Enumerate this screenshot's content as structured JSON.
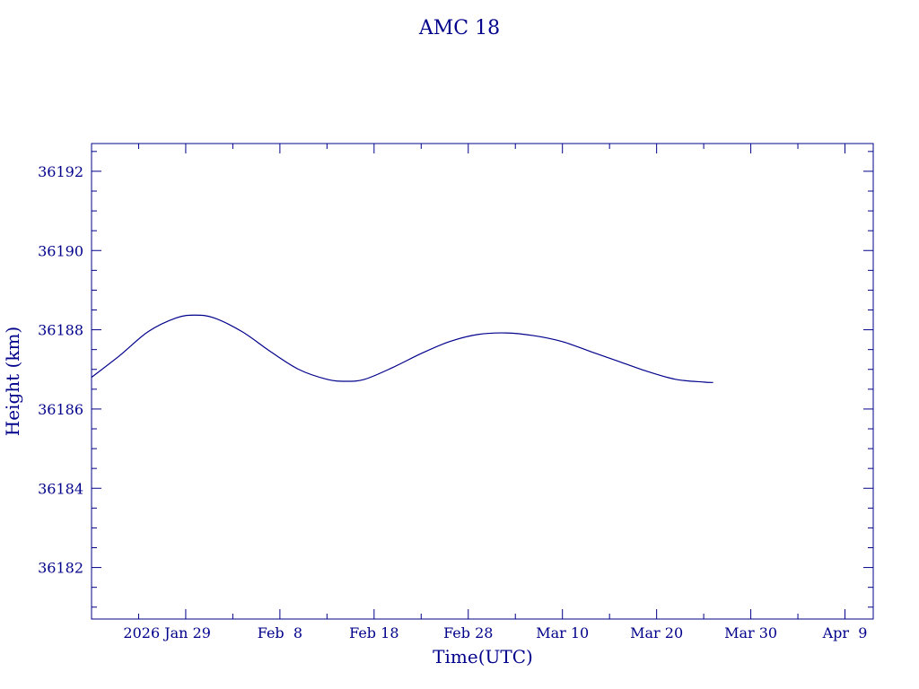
{
  "colors": {
    "axis": "#00008b",
    "line": "#00008b",
    "background": "#ffffff"
  },
  "chart_data": {
    "type": "line",
    "title": "AMC 18",
    "xlabel": "Time(UTC)",
    "ylabel": "Height (km)",
    "xlim": [
      "2026-01-19",
      "2026-04-12"
    ],
    "ylim": [
      36180.7,
      36192.7
    ],
    "grid": false,
    "x_ticks": [
      {
        "date": "2026-01-29",
        "label": "2026 Jan 29"
      },
      {
        "date": "2026-02-08",
        "label": "Feb  8"
      },
      {
        "date": "2026-02-18",
        "label": "Feb 18"
      },
      {
        "date": "2026-02-28",
        "label": "Feb 28"
      },
      {
        "date": "2026-03-10",
        "label": "Mar 10"
      },
      {
        "date": "2026-03-20",
        "label": "Mar 20"
      },
      {
        "date": "2026-03-30",
        "label": "Mar 30"
      },
      {
        "date": "2026-04-09",
        "label": "Apr  9"
      }
    ],
    "y_ticks": [
      36182,
      36184,
      36186,
      36188,
      36190,
      36192
    ],
    "y_tick_labels": [
      "36182",
      "36184",
      "36186",
      "36188",
      "36190",
      "36192"
    ],
    "series": [
      {
        "x": [
          "2026-01-19",
          "2026-01-22",
          "2026-01-25",
          "2026-01-28",
          "2026-01-30",
          "2026-02-01",
          "2026-02-04",
          "2026-02-07",
          "2026-02-10",
          "2026-02-13",
          "2026-02-15",
          "2026-02-17",
          "2026-02-20",
          "2026-02-23",
          "2026-02-26",
          "2026-03-01",
          "2026-03-04",
          "2026-03-07",
          "2026-03-10",
          "2026-03-13",
          "2026-03-16",
          "2026-03-19",
          "2026-03-22",
          "2026-03-25",
          "2026-03-26"
        ],
        "y": [
          36186.8,
          36187.35,
          36187.95,
          36188.3,
          36188.37,
          36188.3,
          36187.95,
          36187.45,
          36187.0,
          36186.75,
          36186.7,
          36186.75,
          36187.05,
          36187.4,
          36187.7,
          36187.88,
          36187.92,
          36187.85,
          36187.7,
          36187.45,
          36187.2,
          36186.95,
          36186.75,
          36186.68,
          36186.67
        ]
      }
    ]
  }
}
